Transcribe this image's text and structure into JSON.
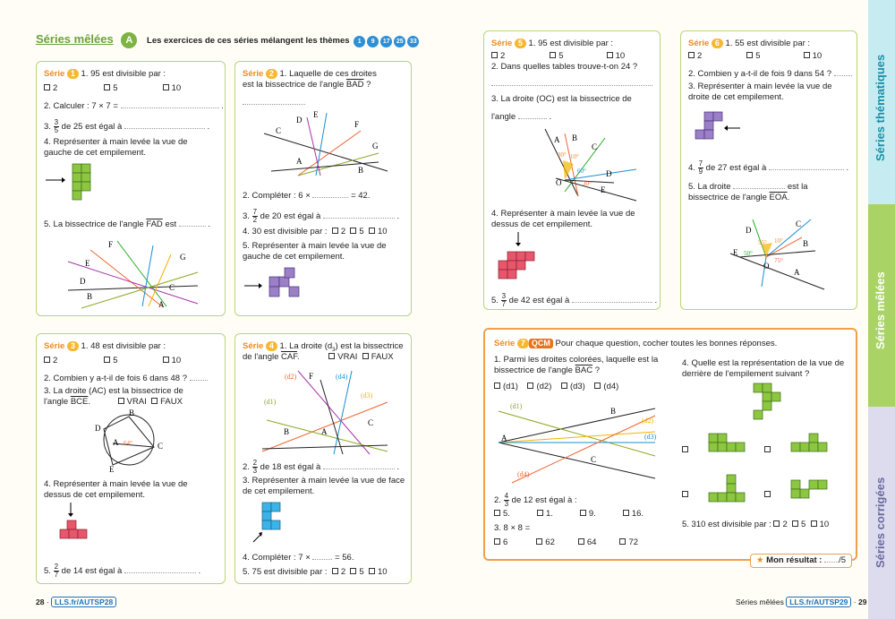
{
  "header": {
    "title": "Séries mêlées",
    "letter": "A",
    "intro": "Les exercices de ces séries mélangent les thèmes",
    "themes": [
      "1",
      "9",
      "17",
      "25",
      "33"
    ]
  },
  "s1": {
    "label": "Série",
    "n": "1",
    "q1": "1. 95 est divisible par :",
    "o": [
      "2",
      "5",
      "10"
    ],
    "q2": "2. Calculer : 7 × 7 =",
    "q3a": "3.",
    "q3n": "3",
    "q3d": "5",
    "q3b": "de 25 est égal à",
    "q4": "4. Représenter à main levée la vue de",
    "q4b": "gauche de cet empilement.",
    "q5": "5. La bissectrice de l'angle",
    "q5ang": "FAD",
    "q5b": "est",
    "pts": [
      "F",
      "G",
      "E",
      "D",
      "C",
      "B",
      "A"
    ]
  },
  "s2": {
    "label": "Série",
    "n": "2",
    "q1": "1. Laquelle de ces droites",
    "q1b": "est la bissectrice de l'angle",
    "q1ang": "BAD",
    "pts": [
      "D",
      "E",
      "F",
      "C",
      "G",
      "A",
      "B"
    ],
    "q2": "2. Compléter : 6 ×",
    "q2b": "= 42.",
    "q3a": "3.",
    "q3n": "7",
    "q3d": "2",
    "q3b": "de 20 est égal à",
    "q4": "4. 30 est divisible par :",
    "o": [
      "2",
      "5",
      "10"
    ],
    "q5": "5. Représenter à main levée la vue de",
    "q5b": "gauche de cet empilement."
  },
  "s3": {
    "label": "Série",
    "n": "3",
    "q1": "1. 48 est divisible par :",
    "o": [
      "2",
      "5",
      "10"
    ],
    "q2": "2. Combien y a-t-il de fois 6 dans 48 ?",
    "q3": "3. La droite (AC) est la bissectrice de",
    "q3b": "l'angle",
    "q3ang": "BCE",
    "vrai": "VRAI",
    "faux": "FAUX",
    "angle": "64°",
    "pts": [
      "B",
      "D",
      "A",
      "C",
      "E"
    ],
    "q4": "4. Représenter à main levée la vue de",
    "q4b": "dessus de cet empilement.",
    "q5a": "5.",
    "q5n": "2",
    "q5d": "7",
    "q5b": "de 14 est égal à"
  },
  "s4": {
    "label": "Série",
    "n": "4",
    "q1": "1. La droite (d",
    "q1sub": "3",
    "q1c": ") est la bissectrice",
    "q1b": "de l'angle",
    "q1ang": "CAF",
    "vrai": "VRAI",
    "faux": "FAUX",
    "lines": [
      "(d2)",
      "(d4)",
      "(d1)",
      "(d3)"
    ],
    "pts": [
      "F",
      "C",
      "B",
      "A"
    ],
    "q2a": "2.",
    "q2n": "2",
    "q2d": "3",
    "q2b": "de 18 est égal à",
    "q3": "3. Représenter à main levée la vue de face",
    "q3b": "de cet empilement.",
    "q4": "4. Compléter : 7 ×",
    "q4b": "= 56.",
    "q5": "5. 75 est divisible par :",
    "o": [
      "2",
      "5",
      "10"
    ]
  },
  "s5": {
    "label": "Série",
    "n": "5",
    "q1": "1. 95 est divisible par :",
    "o": [
      "2",
      "5",
      "10"
    ],
    "q2": "2. Dans quelles tables trouve-t-on 24 ?",
    "q3": "3. La droite (OC) est la bissectrice de",
    "q3b": "l'angle",
    "angles": [
      "30°",
      "10°",
      "60°",
      "30°"
    ],
    "pts": [
      "A",
      "B",
      "C",
      "D",
      "O",
      "E"
    ],
    "q4": "4. Représenter à main levée la vue de",
    "q4b": "dessus de cet empilement.",
    "q5a": "5.",
    "q5n": "3",
    "q5d": "7",
    "q5b": "de 42 est égal à"
  },
  "s6": {
    "label": "Série",
    "n": "6",
    "q1": "1. 55 est divisible par :",
    "o": [
      "2",
      "5",
      "10"
    ],
    "q2": "2. Combien y a-t-il de fois 9 dans 54 ?",
    "q3": "3. Représenter à main levée la vue de",
    "q3b": "droite de cet empilement.",
    "q4a": "4.",
    "q4n": "7",
    "q4d": "9",
    "q4b": "de 27 est égal à",
    "q5": "5. La droite",
    "q5c": "est la",
    "q5b": "bissectrice de l'angle",
    "q5ang": "EOA",
    "angles": [
      "55°",
      "10°",
      "50°",
      "75°"
    ],
    "pts": [
      "D",
      "C",
      "B",
      "E",
      "O",
      "A"
    ]
  },
  "s7": {
    "label": "Série",
    "n": "7",
    "qcm": "QCM",
    "intro": "Pour chaque question, cocher toutes les bonnes réponses.",
    "q1": "1. Parmi les droites colorées, laquelle est la",
    "q1b": "bissectrice de l'angle",
    "q1ang": "BAC",
    "opts": [
      "(d1)",
      "(d2)",
      "(d3)",
      "(d4)"
    ],
    "lines": [
      "(d1)",
      "(d2)",
      "(d3)",
      "(d4)"
    ],
    "pts": [
      "A",
      "B",
      "C"
    ],
    "q2a": "2.",
    "q2n": "4",
    "q2d": "3",
    "q2b": "de 12 est égal à :",
    "q2o": [
      "5.",
      "1.",
      "9.",
      "16."
    ],
    "q3": "3. 8 × 8 =",
    "q3o": [
      "6",
      "62",
      "64",
      "72"
    ],
    "q4": "4. Quelle est la représentation de la vue de",
    "q4b": "derrière de l'empilement suivant ?",
    "q5": "5. 310 est divisible par :",
    "o": [
      "2",
      "5",
      "10"
    ],
    "result": "Mon résultat :",
    "score": "/5"
  },
  "footer": {
    "left_page": "28",
    "left_link": "LLS.fr/AUTSP28",
    "right_title": "Séries mêlées",
    "right_link": "LLS.fr/AUTSP29",
    "right_page": "29"
  },
  "tabs": [
    "Séries thématiques",
    "Séries mêlées",
    "Séries corrigées"
  ],
  "colors": {
    "green_border": "#b6d67a",
    "orange": "#f08a1c",
    "blue": "#1d72b8"
  }
}
